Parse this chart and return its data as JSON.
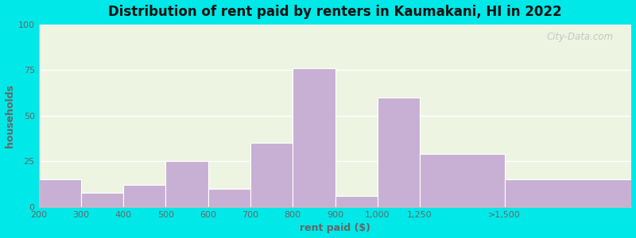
{
  "categories": [
    "200",
    "300",
    "400",
    "500",
    "600",
    "700",
    "800",
    "900",
    "1,000",
    "1,250",
    ">1,500"
  ],
  "values": [
    15,
    8,
    12,
    25,
    10,
    35,
    76,
    6,
    60,
    29,
    15
  ],
  "bar_color": "#c8afd4",
  "bar_edgecolor": "#ffffff",
  "title": "Distribution of rent paid by renters in Kaumakani, HI in 2022",
  "xlabel": "rent paid ($)",
  "ylabel": "households",
  "ylim": [
    0,
    100
  ],
  "yticks": [
    0,
    25,
    50,
    75,
    100
  ],
  "bg_outer": "#00e8e8",
  "bg_plot_top": "#e8f5e0",
  "bg_plot_bottom": "#f5f5f5",
  "grid_color": "#ffffff",
  "title_fontsize": 12,
  "label_fontsize": 9,
  "tick_fontsize": 8,
  "watermark": "City-Data.com",
  "bar_edges": [
    0,
    1,
    2,
    3,
    4,
    5,
    6,
    7,
    8,
    9,
    11,
    14
  ],
  "tick_positions": [
    0,
    1,
    2,
    3,
    4,
    5,
    6,
    7,
    8,
    9,
    11,
    14
  ]
}
